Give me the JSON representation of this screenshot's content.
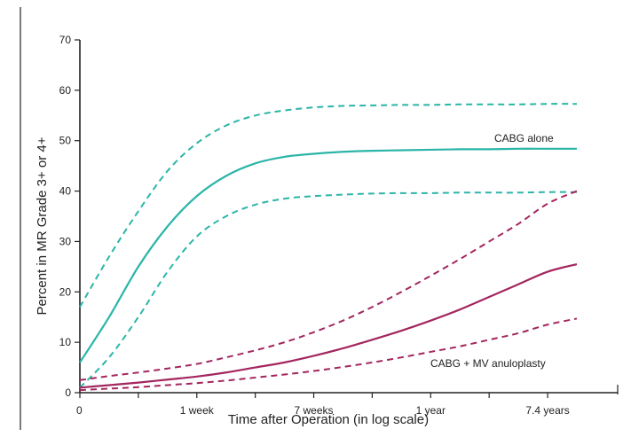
{
  "chart_data": {
    "type": "line",
    "xlabel": "Time after Operation (in log scale)",
    "ylabel": "Percent in MR Grade 3+ or 4+",
    "ylim": [
      0,
      70
    ],
    "yticks": [
      "0",
      "10",
      "20",
      "30",
      "40",
      "50",
      "60",
      "70"
    ],
    "xticks": [
      {
        "label": "0",
        "pos": 0
      },
      {
        "label": "1 week",
        "pos": 2
      },
      {
        "label": "7 weeks",
        "pos": 4
      },
      {
        "label": "1 year",
        "pos": 6
      },
      {
        "label": "7.4 years",
        "pos": 8
      }
    ],
    "x_positions": [
      0,
      0.5,
      1,
      1.5,
      2,
      2.5,
      3,
      3.5,
      4,
      4.5,
      5,
      5.5,
      6,
      6.5,
      7,
      7.5,
      8,
      8.5
    ],
    "series": [
      {
        "name": "CABG alone",
        "color": "#2bb5a8",
        "style": "solid",
        "values": [
          6,
          15,
          25,
          33,
          39,
          43,
          45.5,
          46.8,
          47.4,
          47.8,
          48.0,
          48.1,
          48.2,
          48.3,
          48.3,
          48.4,
          48.4,
          48.4
        ]
      },
      {
        "name": "CABG alone upper CI",
        "color": "#2bb5a8",
        "style": "dashed",
        "values": [
          17,
          27,
          36,
          44,
          49.5,
          53,
          55,
          56,
          56.6,
          56.9,
          57.0,
          57.1,
          57.1,
          57.2,
          57.2,
          57.2,
          57.3,
          57.3
        ]
      },
      {
        "name": "CABG alone lower CI",
        "color": "#2bb5a8",
        "style": "dashed",
        "values": [
          1,
          7,
          15,
          24,
          31,
          35,
          37.3,
          38.5,
          39,
          39.3,
          39.5,
          39.6,
          39.6,
          39.7,
          39.7,
          39.7,
          39.8,
          39.8
        ]
      },
      {
        "name": "CABG + MV anuloplasty",
        "color": "#a3265f",
        "style": "solid",
        "values": [
          1,
          1.5,
          2,
          2.6,
          3.2,
          4,
          5,
          6,
          7.3,
          8.8,
          10.5,
          12.3,
          14.3,
          16.5,
          19,
          21.5,
          24,
          25.5
        ]
      },
      {
        "name": "CABG + MV anuloplasty upper CI",
        "color": "#a3265f",
        "style": "dashed",
        "values": [
          2.5,
          3.3,
          4,
          4.8,
          5.7,
          7,
          8.4,
          10,
          12,
          14.3,
          17,
          20,
          23.2,
          26.5,
          30,
          33.5,
          37.5,
          40
        ]
      },
      {
        "name": "CABG + MV anuloplasty lower CI",
        "color": "#a3265f",
        "style": "dashed",
        "values": [
          0.5,
          0.8,
          1.1,
          1.5,
          1.9,
          2.4,
          3,
          3.6,
          4.3,
          5.1,
          6,
          7,
          8.1,
          9.2,
          10.5,
          11.8,
          13.5,
          14.7
        ]
      }
    ],
    "annotations": [
      {
        "text": "CABG alone",
        "anchor": "CABG alone"
      },
      {
        "text": "CABG + MV anuloplasty",
        "anchor": "CABG + MV anuloplasty"
      }
    ],
    "grid": false,
    "legend": "none"
  }
}
